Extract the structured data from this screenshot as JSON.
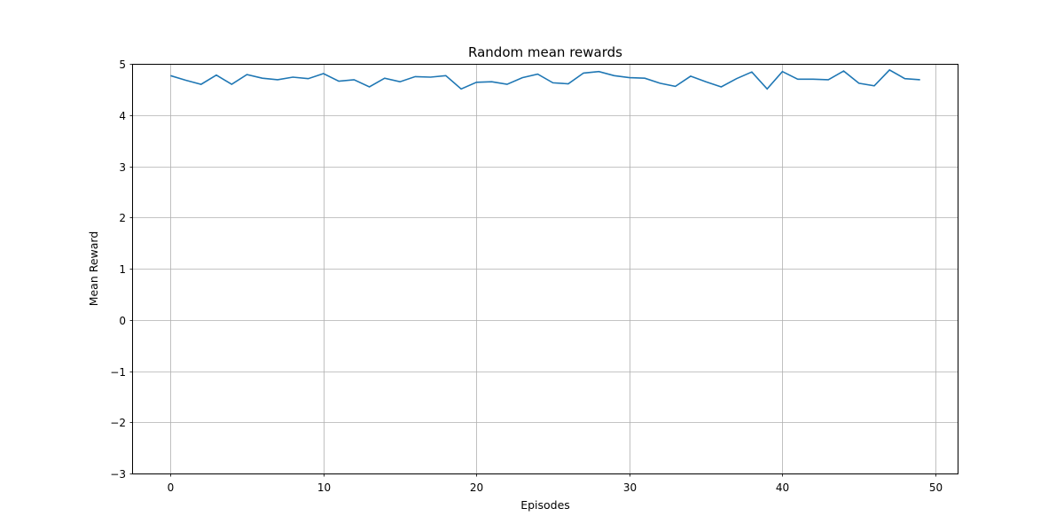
{
  "chart_data": {
    "type": "line",
    "title": "Random mean rewards",
    "xlabel": "Episodes",
    "ylabel": "Mean Reward",
    "xlim": [
      -2.45,
      51.45
    ],
    "ylim": [
      -3,
      5
    ],
    "xticks": [
      0,
      10,
      20,
      30,
      40,
      50
    ],
    "yticks": [
      -3,
      -2,
      -1,
      0,
      1,
      2,
      3,
      4,
      5
    ],
    "grid": true,
    "line_color": "#1f77b4",
    "series": [
      {
        "x": [
          0,
          1,
          2,
          3,
          4,
          5,
          6,
          7,
          8,
          9,
          10,
          11,
          12,
          13,
          14,
          15,
          16,
          17,
          18,
          19,
          20,
          21,
          22,
          23,
          24,
          25,
          26,
          27,
          28,
          29,
          30,
          31,
          32,
          33,
          34,
          35,
          36,
          37,
          38,
          39,
          40,
          41,
          42,
          43,
          44,
          45,
          46,
          47,
          48,
          49
        ],
        "values": [
          4.77,
          4.68,
          4.6,
          4.78,
          4.6,
          4.79,
          4.72,
          4.69,
          4.74,
          4.71,
          4.81,
          4.66,
          4.69,
          4.55,
          4.72,
          4.65,
          4.75,
          4.74,
          4.77,
          4.51,
          4.64,
          4.65,
          4.6,
          4.73,
          4.8,
          4.63,
          4.61,
          4.82,
          4.85,
          4.77,
          4.73,
          4.72,
          4.62,
          4.56,
          4.76,
          4.65,
          4.55,
          4.71,
          4.84,
          4.51,
          4.85,
          4.7,
          4.7,
          4.69,
          4.86,
          4.62,
          4.57,
          4.88,
          4.71,
          4.69
        ]
      }
    ]
  }
}
